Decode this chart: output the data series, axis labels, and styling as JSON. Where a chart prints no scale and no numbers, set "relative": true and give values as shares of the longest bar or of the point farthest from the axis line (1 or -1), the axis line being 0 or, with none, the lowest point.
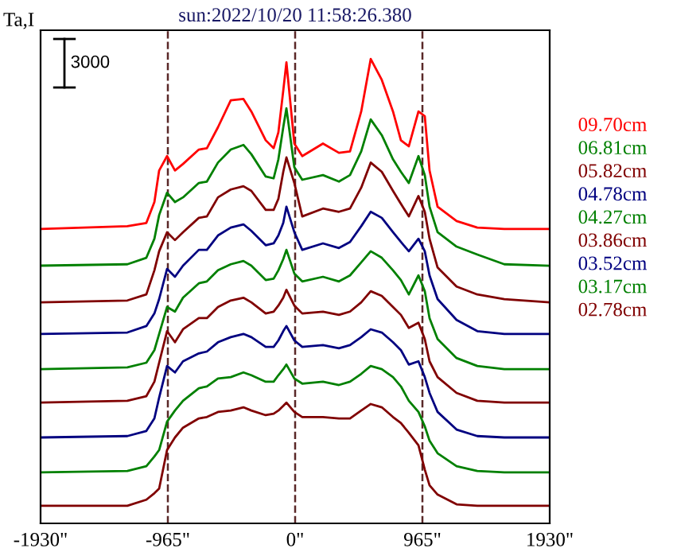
{
  "chart_data": {
    "type": "line",
    "title": "sun:2022/10/20 11:58:26.380",
    "ylabel": "Ta,I",
    "relative": true,
    "x": [
      -1930,
      -1272,
      -1128,
      -1067,
      -1031,
      -971,
      -911,
      -850,
      -730,
      -669,
      -585,
      -488,
      -392,
      -332,
      -223,
      -163,
      -127,
      -90,
      -66,
      -6,
      54,
      211,
      332,
      416,
      501,
      573,
      657,
      742,
      802,
      862,
      935,
      983,
      1019,
      1080,
      1224,
      1381,
      1586,
      1924
    ],
    "xlim": [
      -1930,
      1930
    ],
    "xticks": [
      {
        "value": -1930,
        "label": "-1930\""
      },
      {
        "value": -965,
        "label": "-965\""
      },
      {
        "value": 0,
        "label": "0\""
      },
      {
        "value": 965,
        "label": "965\""
      },
      {
        "value": 1930,
        "label": "1930\""
      }
    ],
    "series": [
      {
        "name": "09.70cm",
        "color": "#ff0000",
        "values": [
          0.634,
          0.64,
          0.647,
          0.692,
          0.76,
          0.791,
          0.76,
          0.774,
          0.805,
          0.808,
          0.853,
          0.911,
          0.914,
          0.887,
          0.825,
          0.808,
          0.842,
          0.932,
          0.993,
          0.818,
          0.791,
          0.818,
          0.798,
          0.801,
          0.887,
          1.0,
          0.955,
          0.887,
          0.825,
          0.812,
          0.887,
          0.877,
          0.76,
          0.682,
          0.651,
          0.637,
          0.634,
          0.634
        ]
      },
      {
        "name": "06.81cm",
        "color": "#008000",
        "values": [
          0.555,
          0.558,
          0.572,
          0.613,
          0.664,
          0.712,
          0.692,
          0.702,
          0.733,
          0.736,
          0.777,
          0.805,
          0.815,
          0.795,
          0.747,
          0.743,
          0.784,
          0.853,
          0.894,
          0.767,
          0.74,
          0.75,
          0.736,
          0.75,
          0.801,
          0.87,
          0.836,
          0.784,
          0.757,
          0.733,
          0.791,
          0.75,
          0.682,
          0.627,
          0.596,
          0.579,
          0.558,
          0.555
        ]
      },
      {
        "name": "05.82cm",
        "color": "#800000",
        "values": [
          0.476,
          0.48,
          0.493,
          0.545,
          0.586,
          0.627,
          0.61,
          0.627,
          0.658,
          0.661,
          0.702,
          0.719,
          0.726,
          0.716,
          0.675,
          0.675,
          0.699,
          0.757,
          0.788,
          0.733,
          0.661,
          0.678,
          0.671,
          0.678,
          0.723,
          0.777,
          0.757,
          0.716,
          0.688,
          0.661,
          0.705,
          0.671,
          0.613,
          0.551,
          0.51,
          0.493,
          0.483,
          0.476
        ]
      },
      {
        "name": "04.78cm",
        "color": "#000080",
        "values": [
          0.408,
          0.411,
          0.425,
          0.452,
          0.483,
          0.548,
          0.531,
          0.555,
          0.589,
          0.589,
          0.62,
          0.637,
          0.644,
          0.63,
          0.599,
          0.603,
          0.62,
          0.647,
          0.682,
          0.627,
          0.589,
          0.603,
          0.593,
          0.606,
          0.64,
          0.671,
          0.658,
          0.627,
          0.606,
          0.586,
          0.613,
          0.586,
          0.534,
          0.483,
          0.438,
          0.414,
          0.408,
          0.408
        ]
      },
      {
        "name": "04.27cm",
        "color": "#008000",
        "values": [
          0.332,
          0.336,
          0.346,
          0.373,
          0.408,
          0.466,
          0.456,
          0.486,
          0.517,
          0.521,
          0.545,
          0.558,
          0.565,
          0.555,
          0.524,
          0.527,
          0.545,
          0.569,
          0.589,
          0.538,
          0.521,
          0.531,
          0.521,
          0.534,
          0.562,
          0.586,
          0.572,
          0.545,
          0.524,
          0.493,
          0.534,
          0.5,
          0.442,
          0.397,
          0.356,
          0.339,
          0.332,
          0.332
        ]
      },
      {
        "name": "03.86cm",
        "color": "#800000",
        "values": [
          0.26,
          0.264,
          0.274,
          0.305,
          0.346,
          0.414,
          0.39,
          0.418,
          0.442,
          0.442,
          0.466,
          0.48,
          0.486,
          0.476,
          0.452,
          0.456,
          0.469,
          0.486,
          0.503,
          0.469,
          0.452,
          0.456,
          0.449,
          0.456,
          0.476,
          0.5,
          0.49,
          0.466,
          0.449,
          0.421,
          0.432,
          0.397,
          0.349,
          0.315,
          0.281,
          0.264,
          0.26,
          0.26
        ]
      },
      {
        "name": "03.52cm",
        "color": "#000080",
        "values": [
          0.185,
          0.188,
          0.199,
          0.226,
          0.271,
          0.339,
          0.325,
          0.349,
          0.366,
          0.37,
          0.39,
          0.401,
          0.408,
          0.401,
          0.38,
          0.38,
          0.394,
          0.414,
          0.425,
          0.394,
          0.38,
          0.384,
          0.377,
          0.384,
          0.401,
          0.418,
          0.411,
          0.39,
          0.373,
          0.342,
          0.349,
          0.315,
          0.281,
          0.24,
          0.202,
          0.188,
          0.185,
          0.185
        ]
      },
      {
        "name": "03.17cm",
        "color": "#008000",
        "values": [
          0.11,
          0.113,
          0.123,
          0.144,
          0.158,
          0.219,
          0.243,
          0.264,
          0.291,
          0.295,
          0.312,
          0.315,
          0.325,
          0.319,
          0.305,
          0.305,
          0.319,
          0.332,
          0.342,
          0.312,
          0.301,
          0.305,
          0.298,
          0.305,
          0.322,
          0.339,
          0.332,
          0.315,
          0.295,
          0.264,
          0.24,
          0.209,
          0.178,
          0.151,
          0.123,
          0.113,
          0.11,
          0.11
        ]
      },
      {
        "name": "02.78cm",
        "color": "#800000",
        "values": [
          0.038,
          0.038,
          0.051,
          0.065,
          0.075,
          0.158,
          0.185,
          0.206,
          0.226,
          0.229,
          0.24,
          0.243,
          0.25,
          0.243,
          0.233,
          0.236,
          0.243,
          0.253,
          0.26,
          0.24,
          0.229,
          0.229,
          0.226,
          0.226,
          0.243,
          0.257,
          0.25,
          0.229,
          0.216,
          0.195,
          0.168,
          0.116,
          0.082,
          0.062,
          0.041,
          0.038,
          0.038,
          0.038
        ]
      }
    ],
    "ref_lines": [
      {
        "axis": "x",
        "value": -965,
        "color": "#5a2828",
        "line_style": "dashed"
      },
      {
        "axis": "x",
        "value": 0,
        "color": "#5a2828",
        "line_style": "dashed"
      },
      {
        "axis": "x",
        "value": 965,
        "color": "#5a2828",
        "line_style": "dashed"
      }
    ],
    "annotations": [
      "3000"
    ],
    "legend": "right",
    "grid": false,
    "marker": "none",
    "line_style": "solid"
  }
}
